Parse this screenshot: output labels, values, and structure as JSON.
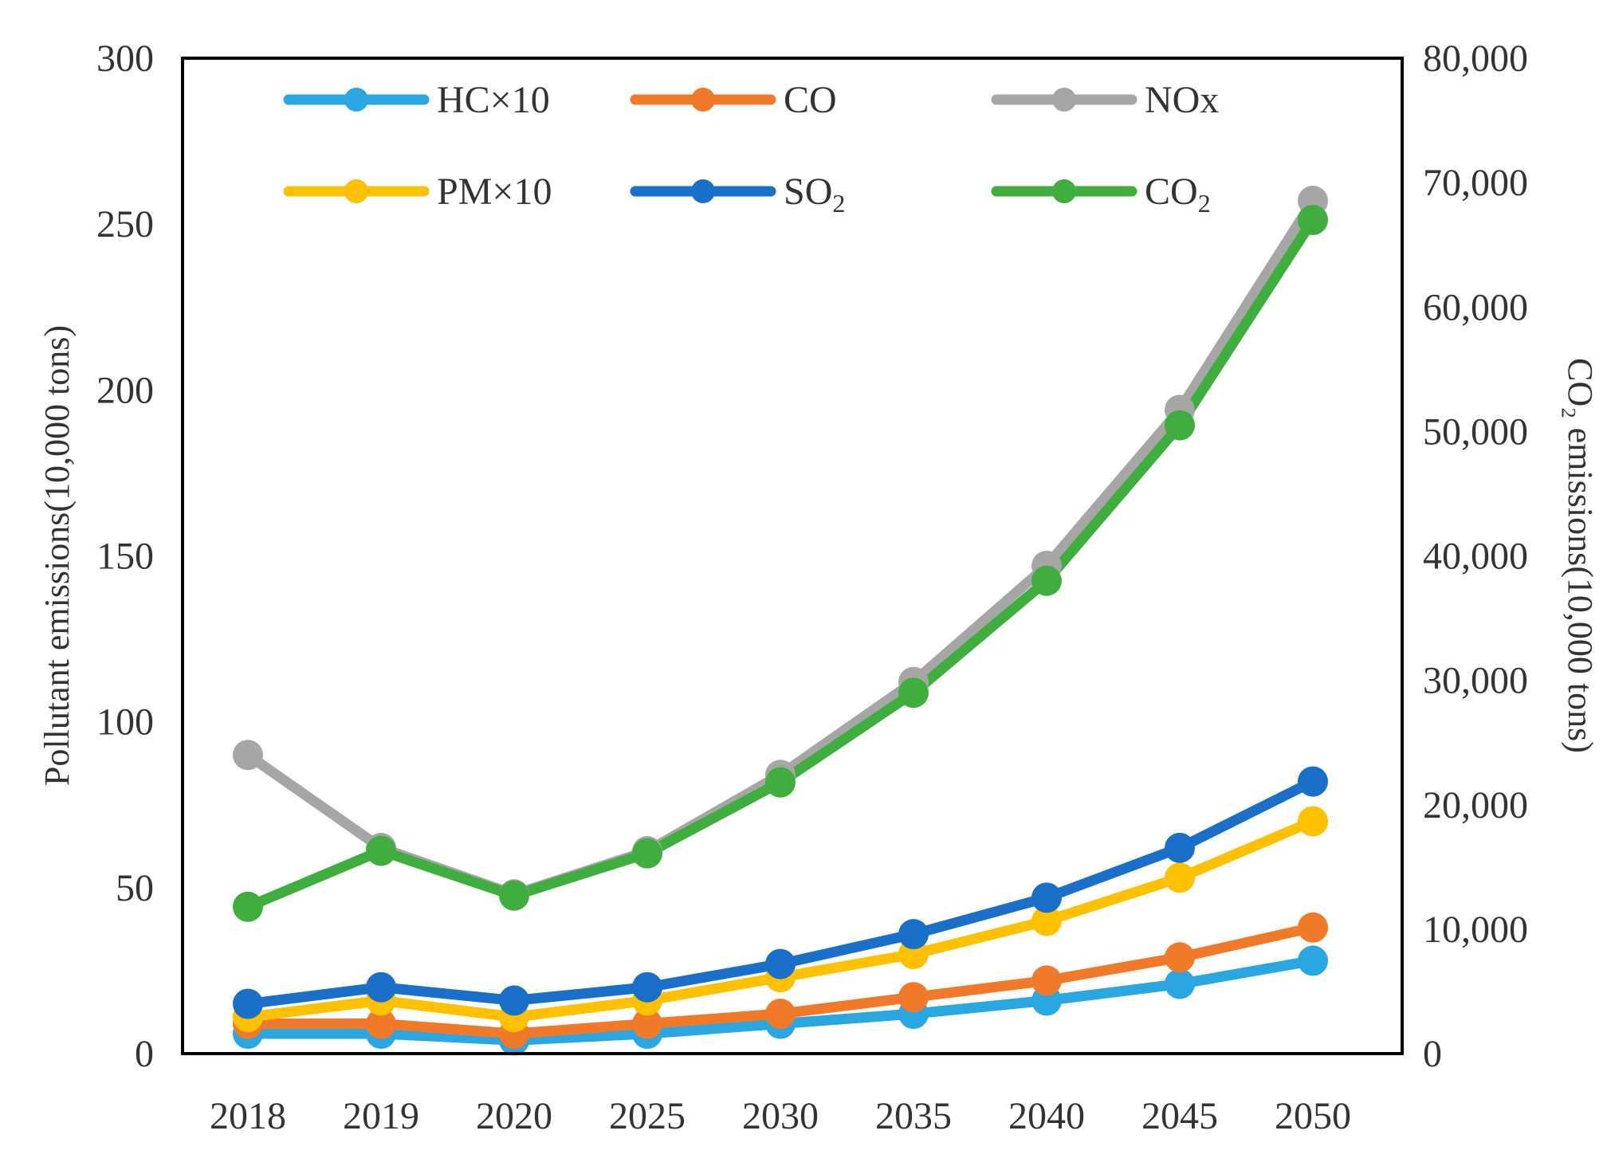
{
  "chart_data": {
    "type": "line",
    "title": "",
    "categories": [
      "2018",
      "2019",
      "2020",
      "2025",
      "2030",
      "2035",
      "2040",
      "2045",
      "2050"
    ],
    "xlabel": "",
    "ylabel": "Pollutant emissions(10,000 tons)",
    "y2label": "CO₂ emissions(10,000 tons)",
    "ylim": [
      0,
      300
    ],
    "y2lim": [
      0,
      80000
    ],
    "yticks": [
      "0",
      "50",
      "100",
      "150",
      "200",
      "250",
      "300"
    ],
    "y2ticks": [
      "0",
      "10,000",
      "20,000",
      "30,000",
      "40,000",
      "50,000",
      "60,000",
      "70,000",
      "80,000"
    ],
    "legend_position": "top",
    "grid": false,
    "series": [
      {
        "name": "HC×10",
        "axis": "left",
        "color": "#2aa6e0",
        "values": [
          6,
          6,
          4,
          6,
          9,
          12,
          16,
          21,
          28
        ]
      },
      {
        "name": "CO",
        "axis": "left",
        "color": "#f07a2a",
        "values": [
          9,
          9,
          6,
          9,
          12,
          17,
          22,
          29,
          38
        ]
      },
      {
        "name": "NOx",
        "axis": "left",
        "color": "#a6a6a6",
        "values": [
          90,
          62,
          48,
          61,
          84,
          112,
          147,
          194,
          257
        ]
      },
      {
        "name": "PM×10",
        "axis": "left",
        "color": "#ffc000",
        "values": [
          11,
          16,
          11,
          16,
          23,
          30,
          40,
          53,
          70
        ]
      },
      {
        "name": "SO",
        "name_sub": "2",
        "axis": "left",
        "color": "#1a6fc8",
        "values": [
          15,
          20,
          16,
          20,
          27,
          36,
          47,
          62,
          82
        ]
      },
      {
        "name": "CO",
        "name_sub": "2",
        "axis": "right",
        "color": "#3fae3f",
        "values": [
          11800,
          16300,
          12700,
          16100,
          21800,
          29000,
          38000,
          50500,
          67000
        ]
      }
    ]
  }
}
